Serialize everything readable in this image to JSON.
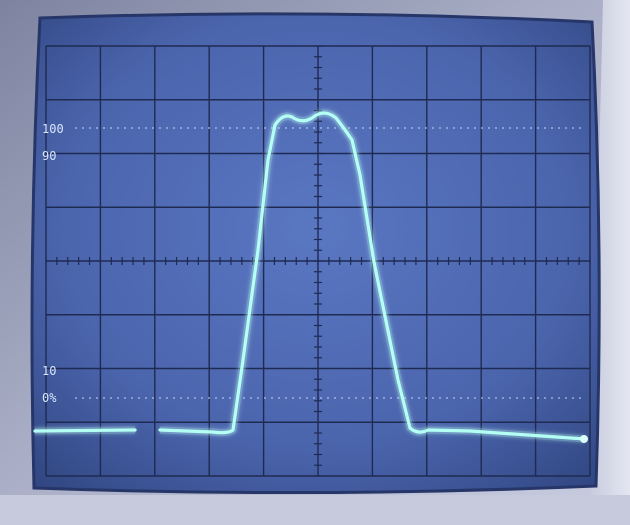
{
  "scope": {
    "graticule_labels": {
      "top": "100",
      "ninety": "90",
      "ten": "10",
      "zero": "0%"
    },
    "colors": {
      "bezel": "#a3a8bf",
      "bezel_shadow": "#6c728d",
      "screen": "#4f6ab5",
      "screen_edge": "#2c3d74",
      "grid": "#1f2c55",
      "trace": "#a8fff2",
      "label": "#d9e6ff"
    }
  }
}
